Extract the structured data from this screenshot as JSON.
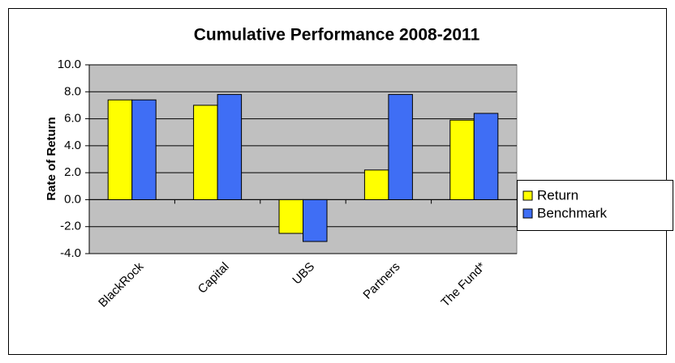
{
  "chart_data": {
    "type": "bar",
    "title": "Cumulative Performance 2008-2011",
    "y_label": "Rate of Return",
    "categories": [
      "BlackRock",
      "Capital",
      "UBS",
      "Partners",
      "The Fund*"
    ],
    "series": [
      {
        "name": "Return",
        "color": "#ffff00",
        "values": [
          7.4,
          7.0,
          -2.5,
          2.2,
          5.9
        ]
      },
      {
        "name": "Benchmark",
        "color": "#3f6ef5",
        "values": [
          7.4,
          7.8,
          -3.1,
          7.8,
          6.4
        ]
      }
    ],
    "ylim": [
      -4,
      10
    ],
    "yticks": [
      {
        "value": -4,
        "label": "-4.0"
      },
      {
        "value": -2,
        "label": "-2.0"
      },
      {
        "value": 0,
        "label": "0.0"
      },
      {
        "value": 2,
        "label": "2.0"
      },
      {
        "value": 4,
        "label": "4.0"
      },
      {
        "value": 6,
        "label": "6.0"
      },
      {
        "value": 8,
        "label": "8.0"
      },
      {
        "value": 10,
        "label": "10.0"
      }
    ],
    "grid": true,
    "legend": "right"
  }
}
